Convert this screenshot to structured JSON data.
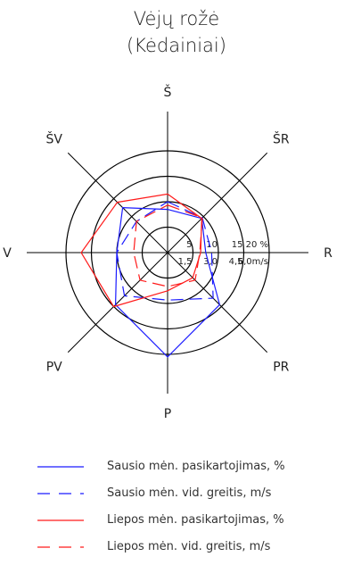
{
  "chart_data": {
    "type": "radar",
    "title": "Vėjų rožė",
    "subtitle": "(Kėdainiai)",
    "directions": [
      "Š",
      "ŠR",
      "R",
      "PR",
      "P",
      "PV",
      "V",
      "ŠV"
    ],
    "ring_labels_percent": [
      "5",
      "10",
      "15",
      "20 %"
    ],
    "ring_labels_speed": [
      "1,5",
      "3,0",
      "4,5",
      "6,0m/s"
    ],
    "rlim_percent": [
      0,
      20
    ],
    "rlim_speed": [
      0,
      6.0
    ],
    "series": [
      {
        "name": "Sausio mėn. pasikartojimas, %",
        "unit": "percent",
        "color": "#1a1aff",
        "dash": "solid",
        "values": [
          8.5,
          9.5,
          7.5,
          14.5,
          20.5,
          14.5,
          10.0,
          12.5
        ]
      },
      {
        "name": "Sausio mėn. vid. greitis, m/s",
        "unit": "m/s",
        "color": "#1a1aff",
        "dash": "dashed",
        "values": [
          3.0,
          2.9,
          2.6,
          3.8,
          2.8,
          3.6,
          3.0,
          2.6
        ]
      },
      {
        "name": "Liepos mėn. pasikartojimas, %",
        "unit": "percent",
        "color": "#ff1a1a",
        "dash": "solid",
        "values": [
          11.5,
          9.5,
          6.5,
          7.0,
          7.5,
          15.0,
          17.0,
          14.0
        ]
      },
      {
        "name": "Liepos mėn. vid. greitis, m/s",
        "unit": "m/s",
        "color": "#ff1a1a",
        "dash": "dashed",
        "values": [
          2.8,
          2.9,
          1.9,
          2.3,
          2.0,
          2.3,
          2.0,
          2.6
        ]
      }
    ],
    "legend_position": "bottom",
    "grid": true
  }
}
